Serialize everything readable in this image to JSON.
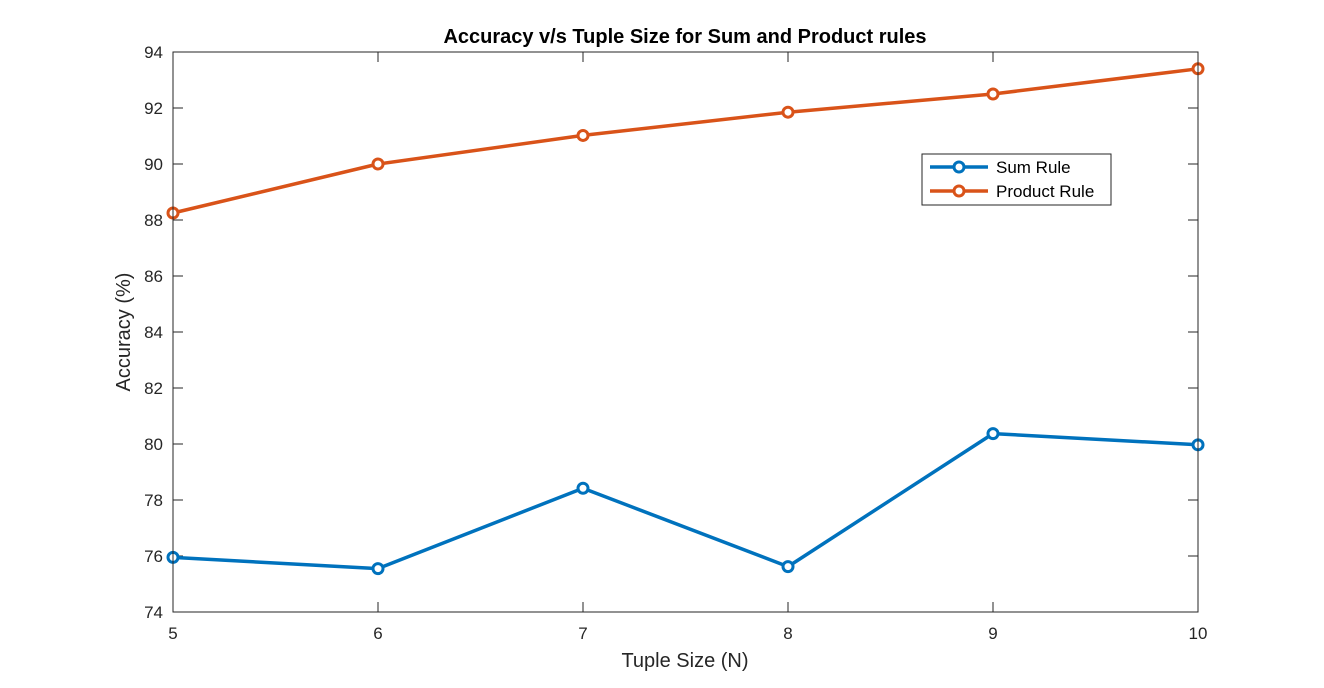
{
  "chart_data": {
    "type": "line",
    "title": "Accuracy v/s Tuple Size for Sum and Product rules",
    "xlabel": "Tuple Size (N)",
    "ylabel": "Accuracy (%)",
    "x": [
      5,
      6,
      7,
      8,
      9,
      10
    ],
    "xlim": [
      5,
      10
    ],
    "ylim": [
      74,
      94
    ],
    "xticks": [
      5,
      6,
      7,
      8,
      9,
      10
    ],
    "yticks": [
      74,
      76,
      78,
      80,
      82,
      84,
      86,
      88,
      90,
      92,
      94
    ],
    "grid": false,
    "legend_position": "top-right",
    "marker": "circle",
    "series": [
      {
        "name": "Sum Rule",
        "color": "#0072BD",
        "values": [
          75.95,
          75.55,
          78.42,
          75.62,
          80.37,
          79.97
        ]
      },
      {
        "name": "Product Rule",
        "color": "#D95319",
        "values": [
          88.25,
          90.0,
          91.02,
          91.85,
          92.5,
          93.4
        ]
      }
    ]
  }
}
